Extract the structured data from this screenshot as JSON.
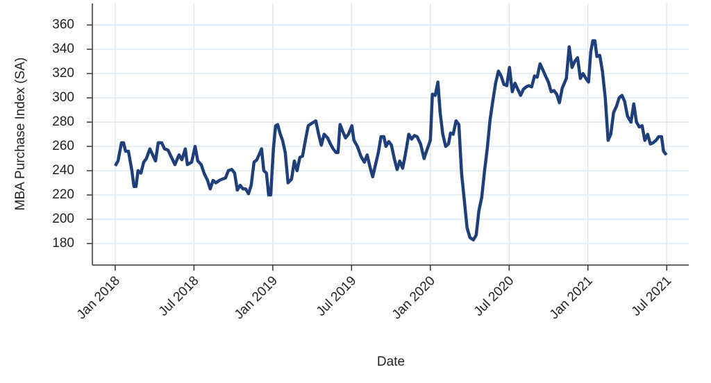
{
  "chart_data": {
    "type": "line",
    "xlabel": "Date",
    "ylabel": "MBA Purchase Index (SA)",
    "xlim": [
      2017.855,
      2021.64
    ],
    "ylim": [
      162.3,
      377.7
    ],
    "xticks": [
      {
        "value": 2018,
        "label": "Jan 2018"
      },
      {
        "value": 2018.5,
        "label": "Jul 2018"
      },
      {
        "value": 2019,
        "label": "Jan 2019"
      },
      {
        "value": 2019.5,
        "label": "Jul 2019"
      },
      {
        "value": 2020,
        "label": "Jan 2020"
      },
      {
        "value": 2020.5,
        "label": "Jul 2020"
      },
      {
        "value": 2021,
        "label": "Jan 2021"
      },
      {
        "value": 2021.5,
        "label": "Jul 2021"
      }
    ],
    "yticks": [
      180,
      200,
      220,
      240,
      260,
      280,
      300,
      320,
      340,
      360
    ],
    "grid": true,
    "series": [
      {
        "color": "#1f3f7a",
        "x": [
          2018.0,
          2018.018,
          2018.04,
          2018.053,
          2018.066,
          2018.084,
          2018.106,
          2018.119,
          2018.132,
          2018.145,
          2018.163,
          2018.181,
          2018.198,
          2018.22,
          2018.238,
          2018.256,
          2018.273,
          2018.295,
          2018.313,
          2018.335,
          2018.357,
          2018.379,
          2018.405,
          2018.423,
          2018.445,
          2018.458,
          2018.485,
          2018.507,
          2018.524,
          2018.546,
          2018.564,
          2018.586,
          2018.603,
          2018.621,
          2018.639,
          2018.661,
          2018.678,
          2018.7,
          2018.718,
          2018.74,
          2018.758,
          2018.775,
          2018.793,
          2018.811,
          2018.828,
          2018.846,
          2018.863,
          2018.881,
          2018.899,
          2018.916,
          2018.929,
          2018.943,
          2018.96,
          2018.974,
          2018.987,
          2019.004,
          2019.018,
          2019.031,
          2019.048,
          2019.062,
          2019.079,
          2019.097,
          2019.119,
          2019.137,
          2019.154,
          2019.172,
          2019.189,
          2019.207,
          2019.225,
          2019.247,
          2019.273,
          2019.291,
          2019.308,
          2019.326,
          2019.348,
          2019.366,
          2019.383,
          2019.401,
          2019.414,
          2019.427,
          2019.445,
          2019.462,
          2019.48,
          2019.502,
          2019.515,
          2019.537,
          2019.559,
          2019.581,
          2019.599,
          2019.617,
          2019.634,
          2019.652,
          2019.67,
          2019.687,
          2019.705,
          2019.718,
          2019.736,
          2019.753,
          2019.771,
          2019.789,
          2019.806,
          2019.824,
          2019.841,
          2019.863,
          2019.881,
          2019.899,
          2019.916,
          2019.938,
          2019.96,
          2019.978,
          2020.0,
          2020.013,
          2020.031,
          2020.048,
          2020.062,
          2020.079,
          2020.097,
          2020.115,
          2020.128,
          2020.145,
          2020.163,
          2020.181,
          2020.198,
          2020.216,
          2020.233,
          2020.251,
          2020.273,
          2020.291,
          2020.308,
          2020.326,
          2020.344,
          2020.361,
          2020.379,
          2020.396,
          2020.414,
          2020.432,
          2020.449,
          2020.467,
          2020.485,
          2020.502,
          2020.52,
          2020.537,
          2020.555,
          2020.573,
          2020.59,
          2020.608,
          2020.626,
          2020.643,
          2020.661,
          2020.678,
          2020.696,
          2020.714,
          2020.731,
          2020.749,
          2020.767,
          2020.784,
          2020.802,
          2020.819,
          2020.837,
          2020.863,
          2020.881,
          2020.899,
          2020.916,
          2020.934,
          2020.952,
          2020.969,
          2020.987,
          2021.004,
          2021.018,
          2021.031,
          2021.044,
          2021.057,
          2021.075,
          2021.092,
          2021.11,
          2021.128,
          2021.145,
          2021.163,
          2021.181,
          2021.198,
          2021.216,
          2021.233,
          2021.251,
          2021.273,
          2021.291,
          2021.308,
          2021.326,
          2021.344,
          2021.361,
          2021.379,
          2021.396,
          2021.414,
          2021.432,
          2021.449,
          2021.467,
          2021.48,
          2021.498
        ],
        "values": [
          244,
          248,
          263,
          263,
          256,
          256,
          240,
          227,
          227,
          240,
          238,
          247,
          250,
          258,
          253,
          248,
          263,
          263,
          258,
          257,
          251,
          245,
          253,
          249,
          258,
          245,
          247,
          260,
          248,
          245,
          238,
          232,
          225,
          232,
          230,
          232,
          233,
          234,
          240,
          241,
          238,
          224,
          228,
          225,
          225,
          221,
          228,
          247,
          249,
          254,
          258,
          240,
          238,
          220,
          220,
          258,
          277,
          278,
          270,
          265,
          255,
          230,
          233,
          248,
          240,
          251,
          252,
          265,
          277,
          279,
          281,
          270,
          261,
          270,
          267,
          262,
          258,
          255,
          255,
          278,
          272,
          267,
          270,
          277,
          265,
          260,
          252,
          247,
          253,
          243,
          235,
          245,
          255,
          268,
          268,
          260,
          264,
          261,
          250,
          241,
          248,
          242,
          253,
          270,
          266,
          269,
          268,
          262,
          250,
          257,
          265,
          303,
          302,
          313,
          288,
          270,
          260,
          262,
          271,
          270,
          281,
          278,
          238,
          215,
          193,
          185,
          183,
          187,
          207,
          218,
          240,
          258,
          282,
          297,
          312,
          322,
          318,
          311,
          310,
          325,
          305,
          312,
          307,
          302,
          307,
          309,
          310,
          309,
          318,
          317,
          328,
          323,
          318,
          313,
          305,
          306,
          303,
          296,
          308,
          316,
          342,
          325,
          330,
          333,
          316,
          320,
          316,
          313,
          338,
          347,
          347,
          334,
          335,
          322,
          300,
          265,
          270,
          288,
          293,
          300,
          302,
          297,
          285,
          280,
          295,
          280,
          276,
          277,
          265,
          270,
          262,
          263,
          265,
          268,
          268,
          256,
          253
        ]
      }
    ]
  }
}
